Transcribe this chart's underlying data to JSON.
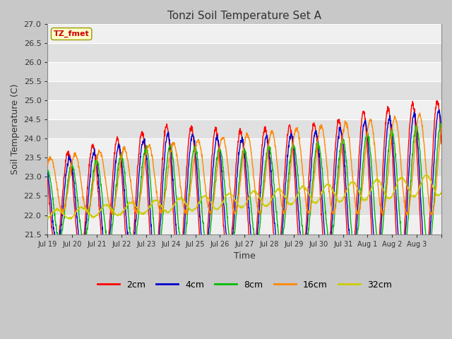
{
  "title": "Tonzi Soil Temperature Set A",
  "ylabel": "Soil Temperature (C)",
  "xlabel": "Time",
  "ylim": [
    21.5,
    27.0
  ],
  "yticks": [
    21.5,
    22.0,
    22.5,
    23.0,
    23.5,
    24.0,
    24.5,
    25.0,
    25.5,
    26.0,
    26.5,
    27.0
  ],
  "colors": {
    "2cm": "#ff0000",
    "4cm": "#0000cc",
    "8cm": "#00bb00",
    "16cm": "#ff8800",
    "32cm": "#cccc00"
  },
  "legend_label": "TZ_fmet",
  "legend_label_color": "#cc0000",
  "legend_label_bg": "#ffffcc",
  "x_tick_labels": [
    "Jul 19",
    "Jul 20",
    "Jul 21",
    "Jul 22",
    "Jul 23",
    "Jul 24",
    "Jul 25",
    "Jul 26",
    "Jul 27",
    "Jul 28",
    "Jul 29",
    "Jul 30",
    "Jul 31",
    "Aug 1",
    "Aug 2",
    "Aug 3"
  ],
  "n_days": 16,
  "pts_per_day": 96,
  "band_colors": [
    "#f0f0f0",
    "#e0e0e0"
  ],
  "grid_color": "#ffffff",
  "fig_bg": "#c8c8c8",
  "ax_bg": "#d8d8d8"
}
